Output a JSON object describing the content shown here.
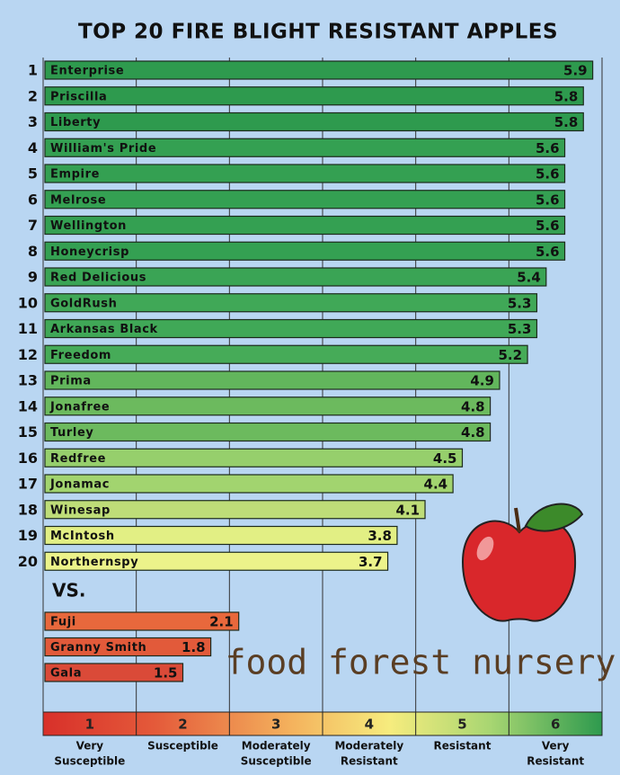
{
  "chart_data": {
    "type": "bar",
    "title": "TOP 20 FIRE BLIGHT RESISTANT APPLES",
    "ranks": [
      1,
      2,
      3,
      4,
      5,
      6,
      7,
      8,
      9,
      10,
      11,
      12,
      13,
      14,
      15,
      16,
      17,
      18,
      19,
      20
    ],
    "categories": [
      "Enterprise",
      "Priscilla",
      "Liberty",
      "William's Pride",
      "Empire",
      "Melrose",
      "Wellington",
      "Honeycrisp",
      "Red Delicious",
      "GoldRush",
      "Arkansas Black",
      "Freedom",
      "Prima",
      "Jonafree",
      "Turley",
      "Redfree",
      "Jonamac",
      "Winesap",
      "McIntosh",
      "Northernspy"
    ],
    "values": [
      5.9,
      5.8,
      5.8,
      5.6,
      5.6,
      5.6,
      5.6,
      5.6,
      5.4,
      5.3,
      5.3,
      5.2,
      4.9,
      4.8,
      4.8,
      4.5,
      4.4,
      4.1,
      3.8,
      3.7
    ],
    "colors": [
      "#2e9a4e",
      "#2e9a4e",
      "#2e9a4e",
      "#34a052",
      "#34a052",
      "#34a052",
      "#34a052",
      "#34a052",
      "#3aa455",
      "#40a857",
      "#40a857",
      "#46ab58",
      "#62b65c",
      "#6cba5e",
      "#6cba5e",
      "#96cf6c",
      "#a2d46f",
      "#bedd78",
      "#e2ef84",
      "#ecf38a"
    ],
    "comparison_label": "VS.",
    "comparison": {
      "categories": [
        "Fuji",
        "Granny Smith",
        "Gala"
      ],
      "values": [
        2.1,
        1.8,
        1.5
      ],
      "colors": [
        "#e8683c",
        "#e25a3a",
        "#da4a38"
      ]
    },
    "xlim": [
      0,
      6
    ],
    "xticks": [
      1,
      2,
      3,
      4,
      5,
      6
    ],
    "scale_labels": [
      [
        "Very",
        "Susceptible"
      ],
      [
        "Susceptible"
      ],
      [
        "Moderately",
        "Susceptible"
      ],
      [
        "Moderately",
        "Resistant"
      ],
      [
        "Resistant"
      ],
      [
        "Very",
        "Resistant"
      ]
    ],
    "logo": "food forest nursery",
    "grid": true
  }
}
